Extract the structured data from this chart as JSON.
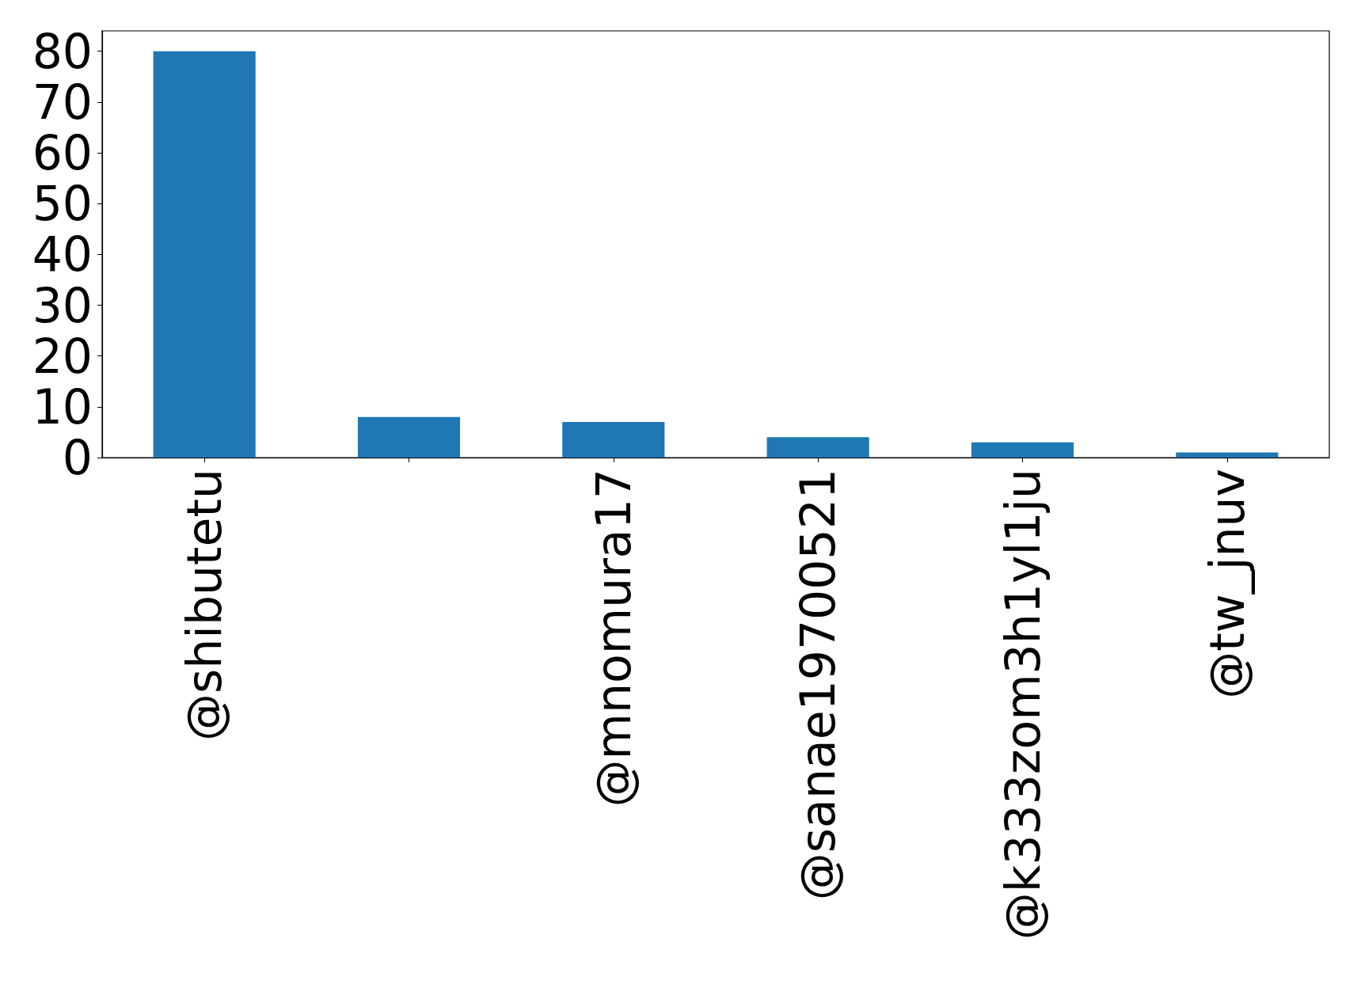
{
  "chart_data": {
    "type": "bar",
    "categories": [
      "@shibutetu",
      null,
      "@mnomura17",
      "@sanae19700521",
      "@k333zom3h1yl1ju",
      "@tw_jnuv"
    ],
    "values": [
      80,
      8,
      7,
      4,
      3,
      1
    ],
    "color": "#1f77b4",
    "ylim": [
      0,
      84
    ],
    "yticks": [
      0,
      10,
      20,
      30,
      40,
      50,
      60,
      70,
      80
    ]
  }
}
